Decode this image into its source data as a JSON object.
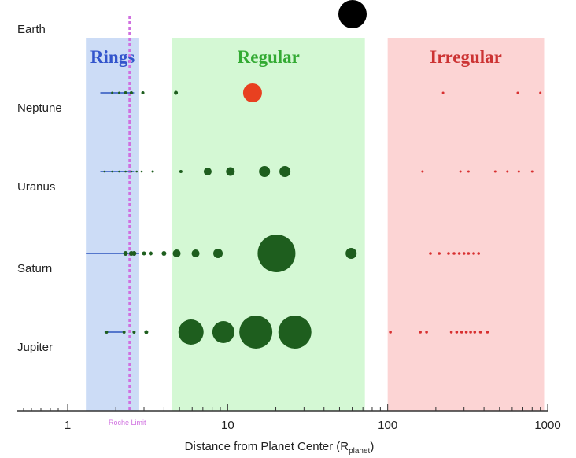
{
  "chart_data": {
    "type": "scatter",
    "title": "",
    "xlabel": "Distance from Planet Center (R",
    "xlabel_subscript": "planet",
    "xlabel_suffix": ")",
    "x_scale": "log",
    "xlim": [
      1,
      1000
    ],
    "x_ticks": [
      1,
      10,
      100,
      1000
    ],
    "x_tick_labels": [
      "1",
      "10",
      "100",
      "1000"
    ],
    "grid": false,
    "rows": [
      "Earth",
      "Neptune",
      "Uranus",
      "Saturn",
      "Jupiter"
    ],
    "regions": [
      {
        "name": "Rings",
        "range": [
          1.3,
          2.8
        ],
        "color": "#ccdcf6",
        "label_color": "#3355cc"
      },
      {
        "name": "Regular",
        "range": [
          4.5,
          72
        ],
        "color": "#d4f8d4",
        "label_color": "#33aa33"
      },
      {
        "name": "Irregular",
        "range": [
          100,
          950
        ],
        "color": "#fcd4d4",
        "label_color": "#cc3333"
      }
    ],
    "roche_limit": {
      "label": "Roche Limit",
      "x": 2.44,
      "color": "#d070e0"
    },
    "rings": [
      {
        "planet": "Neptune",
        "range": [
          1.6,
          2.6
        ]
      },
      {
        "planet": "Uranus",
        "range": [
          1.6,
          2.6
        ]
      },
      {
        "planet": "Saturn",
        "range": [
          1.3,
          2.8
        ]
      },
      {
        "planet": "Jupiter",
        "range": [
          1.7,
          2.2
        ]
      }
    ],
    "series": [
      {
        "planet": "Earth",
        "kind": "regular",
        "color": "#000000",
        "points": [
          {
            "x": 60.3,
            "size": 18
          }
        ]
      },
      {
        "planet": "Neptune",
        "kind": "regular",
        "color": "#1e5e1e",
        "points": [
          {
            "x": 1.9,
            "size": 1.5
          },
          {
            "x": 2.1,
            "size": 1.5
          },
          {
            "x": 2.3,
            "size": 2
          },
          {
            "x": 2.5,
            "size": 2
          },
          {
            "x": 2.95,
            "size": 2
          },
          {
            "x": 4.75,
            "size": 2.5
          }
        ]
      },
      {
        "planet": "Neptune",
        "kind": "captured",
        "color": "#e84020",
        "points": [
          {
            "x": 14.3,
            "size": 12
          }
        ]
      },
      {
        "planet": "Neptune",
        "kind": "irregular",
        "color": "#d83030",
        "points": [
          {
            "x": 222,
            "size": 1.5
          },
          {
            "x": 650,
            "size": 1.5
          },
          {
            "x": 900,
            "size": 1.5
          }
        ]
      },
      {
        "planet": "Uranus",
        "kind": "regular",
        "color": "#1e5e1e",
        "points": [
          {
            "x": 1.7,
            "size": 1.3
          },
          {
            "x": 1.9,
            "size": 1.3
          },
          {
            "x": 2.1,
            "size": 1.3
          },
          {
            "x": 2.3,
            "size": 1.3
          },
          {
            "x": 2.5,
            "size": 1.3
          },
          {
            "x": 2.7,
            "size": 1.3
          },
          {
            "x": 2.9,
            "size": 1.3
          },
          {
            "x": 3.4,
            "size": 1.5
          },
          {
            "x": 5.1,
            "size": 2
          },
          {
            "x": 7.5,
            "size": 5
          },
          {
            "x": 10.4,
            "size": 5.5
          },
          {
            "x": 17.0,
            "size": 7
          },
          {
            "x": 22.8,
            "size": 7
          }
        ]
      },
      {
        "planet": "Uranus",
        "kind": "irregular",
        "color": "#d83030",
        "points": [
          {
            "x": 165,
            "size": 1.5
          },
          {
            "x": 285,
            "size": 1.5
          },
          {
            "x": 320,
            "size": 1.5
          },
          {
            "x": 470,
            "size": 1.5
          },
          {
            "x": 560,
            "size": 1.5
          },
          {
            "x": 660,
            "size": 1.5
          },
          {
            "x": 800,
            "size": 1.5
          }
        ]
      },
      {
        "planet": "Saturn",
        "kind": "regular",
        "color": "#1e5e1e",
        "points": [
          {
            "x": 2.3,
            "size": 3
          },
          {
            "x": 2.5,
            "size": 3
          },
          {
            "x": 2.6,
            "size": 3
          },
          {
            "x": 3.0,
            "size": 2.5
          },
          {
            "x": 3.3,
            "size": 2.5
          },
          {
            "x": 4.0,
            "size": 3
          },
          {
            "x": 4.8,
            "size": 5
          },
          {
            "x": 6.3,
            "size": 5
          },
          {
            "x": 8.7,
            "size": 6
          },
          {
            "x": 20.2,
            "size": 24
          },
          {
            "x": 59.1,
            "size": 7
          }
        ]
      },
      {
        "planet": "Saturn",
        "kind": "irregular",
        "color": "#d83030",
        "points": [
          {
            "x": 185,
            "size": 1.8
          },
          {
            "x": 210,
            "size": 1.8
          },
          {
            "x": 240,
            "size": 1.8
          },
          {
            "x": 260,
            "size": 1.8
          },
          {
            "x": 280,
            "size": 1.8
          },
          {
            "x": 300,
            "size": 1.8
          },
          {
            "x": 320,
            "size": 1.8
          },
          {
            "x": 345,
            "size": 1.8
          },
          {
            "x": 370,
            "size": 1.8
          }
        ]
      },
      {
        "planet": "Jupiter",
        "kind": "regular",
        "color": "#1e5e1e",
        "points": [
          {
            "x": 1.75,
            "size": 2
          },
          {
            "x": 2.25,
            "size": 2
          },
          {
            "x": 2.6,
            "size": 2
          },
          {
            "x": 3.1,
            "size": 2.5
          },
          {
            "x": 5.9,
            "size": 16
          },
          {
            "x": 9.4,
            "size": 14
          },
          {
            "x": 15.0,
            "size": 21
          },
          {
            "x": 26.3,
            "size": 21
          }
        ]
      },
      {
        "planet": "Jupiter",
        "kind": "irregular",
        "color": "#d83030",
        "points": [
          {
            "x": 104,
            "size": 1.8
          },
          {
            "x": 160,
            "size": 1.8
          },
          {
            "x": 175,
            "size": 1.8
          },
          {
            "x": 250,
            "size": 1.8
          },
          {
            "x": 270,
            "size": 1.8
          },
          {
            "x": 290,
            "size": 1.8
          },
          {
            "x": 310,
            "size": 1.8
          },
          {
            "x": 330,
            "size": 1.8
          },
          {
            "x": 350,
            "size": 1.8
          },
          {
            "x": 380,
            "size": 1.8
          },
          {
            "x": 420,
            "size": 1.8
          }
        ]
      }
    ]
  }
}
